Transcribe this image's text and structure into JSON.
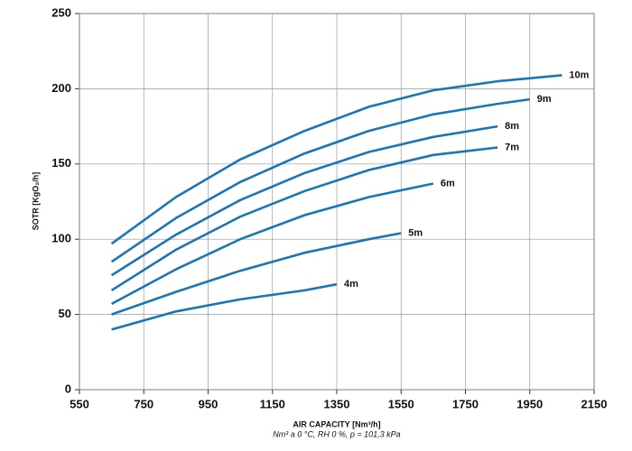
{
  "chart_data": {
    "type": "line",
    "x_label": "AIR CAPACITY [Nm³/h]",
    "x_note": "Nm³ a 0 °C, RH 0 %, p = 101,3 kPa",
    "y_label": "SOTR [KgO₂/h]",
    "xlim": [
      550,
      2150
    ],
    "xticks": [
      550,
      750,
      950,
      1150,
      1350,
      1550,
      1750,
      1950,
      2150
    ],
    "ylim": [
      0,
      250
    ],
    "yticks": [
      0,
      50,
      100,
      150,
      200,
      250
    ],
    "grid": true,
    "series": [
      {
        "name": "10m",
        "color": "#1a75b8",
        "x": [
          650,
          850,
          1050,
          1250,
          1450,
          1650,
          1850,
          2050
        ],
        "values": [
          97,
          128,
          153,
          172,
          188,
          199,
          205,
          209
        ]
      },
      {
        "name": "9m",
        "color": "#1a75b8",
        "x": [
          650,
          850,
          1050,
          1250,
          1450,
          1650,
          1850,
          1950
        ],
        "values": [
          85,
          114,
          138,
          157,
          172,
          183,
          190,
          193
        ]
      },
      {
        "name": "8m",
        "color": "#1a75b8",
        "x": [
          650,
          850,
          1050,
          1250,
          1450,
          1650,
          1850
        ],
        "values": [
          76,
          103,
          126,
          144,
          158,
          168,
          175
        ]
      },
      {
        "name": "7m",
        "color": "#1a75b8",
        "x": [
          650,
          850,
          1050,
          1250,
          1450,
          1650,
          1850
        ],
        "values": [
          66,
          93,
          115,
          132,
          146,
          156,
          161
        ]
      },
      {
        "name": "6m",
        "color": "#1a75b8",
        "x": [
          650,
          850,
          1050,
          1250,
          1450,
          1650
        ],
        "values": [
          57,
          80,
          100,
          116,
          128,
          137
        ]
      },
      {
        "name": "5m",
        "color": "#1a75b8",
        "x": [
          650,
          850,
          1050,
          1250,
          1450,
          1550
        ],
        "values": [
          50,
          65,
          79,
          91,
          100,
          104
        ]
      },
      {
        "name": "4m",
        "color": "#1a75b8",
        "x": [
          650,
          850,
          1050,
          1250,
          1350
        ],
        "values": [
          40,
          52,
          60,
          66,
          70
        ]
      }
    ]
  }
}
